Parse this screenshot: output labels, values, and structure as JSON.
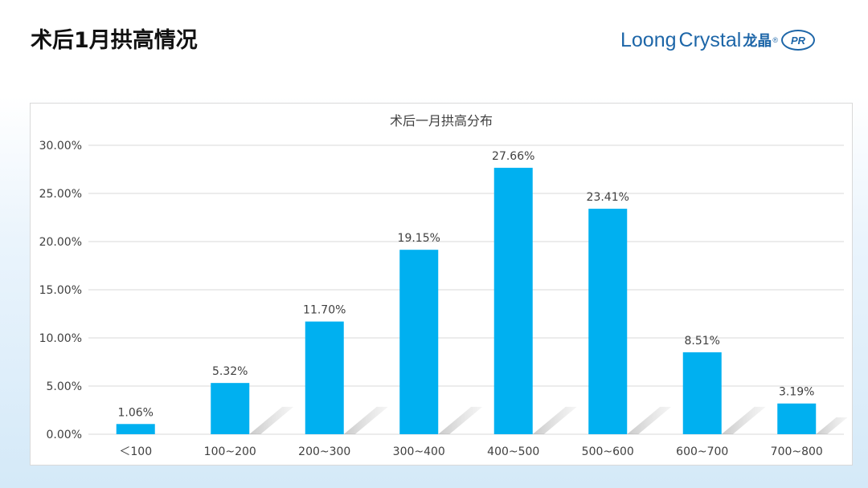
{
  "header": {
    "title": "术后1月拱高情况"
  },
  "logo": {
    "brand_part1": "Loong",
    "brand_part2": "Crystal",
    "brand_cn": "龙晶",
    "registered": "®",
    "badge": "PR",
    "brand_color": "#1d66a8"
  },
  "colors": {
    "bar": "#00b0f0",
    "grid": "#d9d9d9",
    "text": "#404040"
  },
  "chart_data": {
    "type": "bar",
    "title": "术后一月拱高分布",
    "categories": [
      "＜100",
      "100~200",
      "200~300",
      "300~400",
      "400~500",
      "500~600",
      "600~700",
      "700~800"
    ],
    "values": [
      1.06,
      5.32,
      11.7,
      19.15,
      27.66,
      23.41,
      8.51,
      3.19
    ],
    "data_labels": [
      "1.06%",
      "5.32%",
      "11.70%",
      "19.15%",
      "27.66%",
      "23.41%",
      "8.51%",
      "3.19%"
    ],
    "yticks": [
      0,
      5,
      10,
      15,
      20,
      25,
      30
    ],
    "ytick_labels": [
      "0.00%",
      "5.00%",
      "10.00%",
      "15.00%",
      "20.00%",
      "25.00%",
      "30.00%"
    ],
    "ylim": [
      0,
      30
    ],
    "xlabel": "",
    "ylabel": "",
    "grid": true
  }
}
